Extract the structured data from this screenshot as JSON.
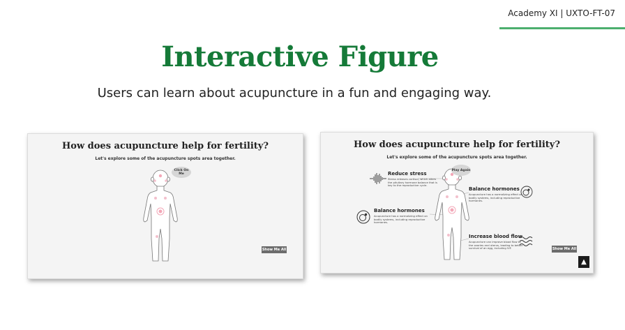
{
  "header": {
    "course_tag": "Academy XI | UXTO-FT-07"
  },
  "slide": {
    "title": "Interactive Figure",
    "subtitle": "Users can learn about acupuncture in a fun and engaging way."
  },
  "colors": {
    "title_green": "#157a38",
    "rule_green": "#4caf6e",
    "hotspot_pink": "#f3a8b8"
  },
  "left_screen": {
    "title": "How does acupuncture help for fertility?",
    "subtitle": "Let's explore some of the acupuncture spots area together.",
    "bubble": "Click On Me",
    "button": "Show Me All"
  },
  "right_screen": {
    "title": "How does acupuncture help for fertility?",
    "subtitle": "Let's explore some of the acupuncture spots area together.",
    "bubble": "Play Again",
    "button": "Show Me All",
    "scroll_top_icon": "chevron-up-icon",
    "notes": [
      {
        "title": "Reduce stress",
        "text": "Stress releases cortisol, which alters the pituitary hormone balance that is key to the reproductive cycle.",
        "icon": "sound-wave-icon"
      },
      {
        "title": "Balance hormones",
        "text": "Acupuncture has a normalizing effect on bodily systems, including reproductive hormones.",
        "icon": "hormone-cell-icon"
      },
      {
        "title": "Balance hormones",
        "text": "Acupuncture has a normalizing effect on bodily systems, including reproductive hormones.",
        "icon": "hormone-cell-icon"
      },
      {
        "title": "Increase blood flow",
        "text": "Acupuncture can improve blood flow to the ovaries and uterus, leading to better survival of an egg, including IVF.",
        "icon": "blood-flow-icon"
      }
    ]
  }
}
